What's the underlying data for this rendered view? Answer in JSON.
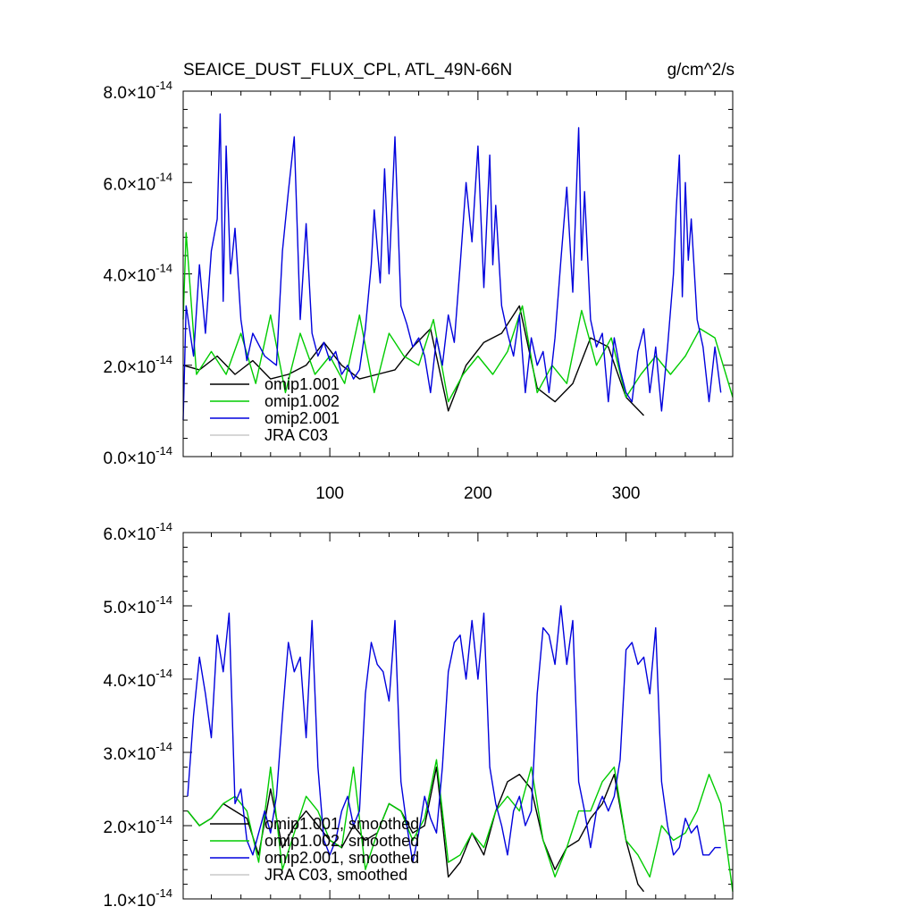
{
  "chart_data": [
    {
      "type": "line",
      "title": "SEAICE_DUST_FLUX_CPL, ATL_49N-66N",
      "units": "g/cm^2/s",
      "xlim": [
        1,
        372
      ],
      "ylim": [
        0,
        8e-14
      ],
      "x_ticks": [
        100,
        200,
        300
      ],
      "y_ticks": [
        "0.0",
        "2.0",
        "4.0",
        "6.0",
        "8.0"
      ],
      "y_tick_values": [
        0,
        2e-14,
        4e-14,
        6e-14,
        8e-14
      ],
      "y_tick_exponent": "-14",
      "legend_position": "bottom-left",
      "series": [
        {
          "name": "omip1.001",
          "color": "#000000",
          "x": [
            1,
            12,
            24,
            36,
            48,
            60,
            72,
            84,
            96,
            108,
            120,
            132,
            144,
            156,
            168,
            180,
            192,
            204,
            216,
            228,
            240,
            252,
            264,
            276,
            288,
            300,
            312
          ],
          "values": [
            2e-14,
            1.9e-14,
            2.2e-14,
            1.8e-14,
            2.1e-14,
            1.7e-14,
            1.8e-14,
            2e-14,
            2.5e-14,
            2e-14,
            1.7e-14,
            1.8e-14,
            1.9e-14,
            2.4e-14,
            2.8e-14,
            1e-14,
            2e-14,
            2.5e-14,
            2.7e-14,
            3.3e-14,
            1.5e-14,
            1.2e-14,
            1.6e-14,
            2.6e-14,
            2.4e-14,
            1.3e-14,
            9e-15
          ]
        },
        {
          "name": "omip1.002",
          "color": "#00cc00",
          "x": [
            1,
            3,
            10,
            20,
            30,
            40,
            50,
            60,
            70,
            80,
            90,
            100,
            110,
            120,
            130,
            140,
            150,
            160,
            170,
            180,
            190,
            200,
            210,
            220,
            230,
            240,
            250,
            260,
            270,
            280,
            290,
            300,
            310,
            320,
            330,
            340,
            350,
            360,
            372
          ],
          "values": [
            3e-14,
            4.9e-14,
            1.8e-14,
            2.3e-14,
            1.8e-14,
            2.7e-14,
            1.6e-14,
            3.1e-14,
            1.4e-14,
            2.7e-14,
            1.8e-14,
            2.2e-14,
            1.6e-14,
            3.1e-14,
            1.4e-14,
            2.7e-14,
            2.2e-14,
            2e-14,
            3e-14,
            1.2e-14,
            1.8e-14,
            2.2e-14,
            1.8e-14,
            2.3e-14,
            3.3e-14,
            1.4e-14,
            2e-14,
            1.6e-14,
            3.2e-14,
            2e-14,
            2.6e-14,
            1.3e-14,
            1.8e-14,
            2.2e-14,
            1.8e-14,
            2.2e-14,
            2.8e-14,
            2.6e-14,
            1.3e-14
          ]
        },
        {
          "name": "omip2.001",
          "color": "#0000dd",
          "x": [
            1,
            3,
            8,
            12,
            16,
            20,
            24,
            26,
            28,
            30,
            33,
            36,
            40,
            44,
            48,
            56,
            64,
            68,
            72,
            76,
            80,
            84,
            88,
            92,
            96,
            100,
            104,
            108,
            112,
            116,
            120,
            124,
            128,
            130,
            134,
            137,
            140,
            144,
            148,
            152,
            156,
            160,
            164,
            168,
            172,
            176,
            180,
            184,
            188,
            192,
            196,
            200,
            204,
            208,
            210,
            212,
            216,
            220,
            224,
            228,
            232,
            236,
            240,
            244,
            248,
            252,
            256,
            260,
            264,
            268,
            270,
            272,
            276,
            280,
            284,
            288,
            292,
            296,
            300,
            304,
            308,
            312,
            316,
            320,
            324,
            328,
            332,
            334,
            336,
            338,
            340,
            342,
            344,
            348,
            352,
            356,
            360,
            364
          ],
          "values": [
            8e-15,
            3.3e-14,
            2.2e-14,
            4.2e-14,
            2.7e-14,
            4.5e-14,
            5.2e-14,
            7.5e-14,
            3.4e-14,
            6.8e-14,
            4e-14,
            5e-14,
            3e-14,
            2.1e-14,
            2.7e-14,
            2.2e-14,
            2e-14,
            4.5e-14,
            5.8e-14,
            7e-14,
            3e-14,
            5.1e-14,
            2.7e-14,
            2.2e-14,
            2.5e-14,
            2.1e-14,
            2.3e-14,
            1.8e-14,
            2e-14,
            1.7e-14,
            1.9e-14,
            2.8e-14,
            4.2e-14,
            5.4e-14,
            3.8e-14,
            6.3e-14,
            4e-14,
            7e-14,
            3.3e-14,
            2.9e-14,
            2.4e-14,
            2.6e-14,
            2.2e-14,
            1.4e-14,
            2.6e-14,
            2e-14,
            3.1e-14,
            2.5e-14,
            4.2e-14,
            6e-14,
            4.7e-14,
            6.8e-14,
            3.7e-14,
            6.6e-14,
            4.2e-14,
            5.5e-14,
            3.3e-14,
            2.7e-14,
            2.2e-14,
            3.1e-14,
            1.4e-14,
            2.6e-14,
            2e-14,
            2.3e-14,
            1.4e-14,
            2.6e-14,
            4.3e-14,
            5.9e-14,
            3.6e-14,
            7.2e-14,
            4.3e-14,
            5.8e-14,
            3e-14,
            2.4e-14,
            2.7e-14,
            1.2e-14,
            2.6e-14,
            1.9e-14,
            1.4e-14,
            1.2e-14,
            2.3e-14,
            2.8e-14,
            1.4e-14,
            2.4e-14,
            1e-14,
            2.4e-14,
            4e-14,
            5.5e-14,
            6.6e-14,
            3.5e-14,
            6e-14,
            4.3e-14,
            5.2e-14,
            3e-14,
            2.4e-14,
            1.2e-14,
            2.4e-14,
            1.4e-14
          ]
        },
        {
          "name": "JRA C03",
          "color": "#c8c8c8",
          "x": [],
          "values": []
        }
      ]
    },
    {
      "type": "line",
      "xlim": [
        1,
        372
      ],
      "ylim": [
        1e-14,
        6e-14
      ],
      "x_ticks": [
        100,
        200,
        300
      ],
      "y_ticks": [
        "1.0",
        "2.0",
        "3.0",
        "4.0",
        "5.0",
        "6.0"
      ],
      "y_tick_values": [
        1e-14,
        2e-14,
        3e-14,
        4e-14,
        5e-14,
        6e-14
      ],
      "y_tick_exponent": "-14",
      "legend_position": "bottom-left",
      "series": [
        {
          "name": "omip1.001, smoothed",
          "color": "#000000",
          "x": [
            4,
            12,
            20,
            28,
            36,
            44,
            52,
            60,
            68,
            76,
            84,
            92,
            100,
            108,
            116,
            124,
            132,
            140,
            148,
            156,
            164,
            172,
            180,
            188,
            196,
            204,
            212,
            220,
            228,
            236,
            244,
            252,
            260,
            268,
            276,
            284,
            292,
            300,
            308,
            312
          ],
          "values": [
            2.2e-14,
            2e-14,
            2.1e-14,
            2.3e-14,
            2.2e-14,
            2.1e-14,
            1.6e-14,
            2.5e-14,
            1.7e-14,
            2e-14,
            2.2e-14,
            2e-14,
            1.8e-14,
            1.7e-14,
            2e-14,
            1.8e-14,
            1.9e-14,
            2.3e-14,
            2.2e-14,
            1.9e-14,
            2e-14,
            2.8e-14,
            1.3e-14,
            1.5e-14,
            1.9e-14,
            1.6e-14,
            2.2e-14,
            2.6e-14,
            2.7e-14,
            2.5e-14,
            1.8e-14,
            1.4e-14,
            1.7e-14,
            1.8e-14,
            2.1e-14,
            2.3e-14,
            2.7e-14,
            1.8e-14,
            1.2e-14,
            1.1e-14
          ]
        },
        {
          "name": "omip1.002, smoothed",
          "color": "#00cc00",
          "x": [
            4,
            12,
            20,
            28,
            36,
            44,
            52,
            60,
            68,
            76,
            84,
            92,
            100,
            108,
            116,
            124,
            132,
            140,
            148,
            156,
            164,
            172,
            180,
            188,
            196,
            204,
            212,
            220,
            228,
            236,
            244,
            252,
            260,
            268,
            276,
            284,
            292,
            300,
            308,
            316,
            324,
            332,
            340,
            348,
            356,
            364,
            372
          ],
          "values": [
            2.2e-14,
            2e-14,
            2.1e-14,
            2.3e-14,
            2.4e-14,
            2.2e-14,
            1.5e-14,
            2.8e-14,
            1.4e-14,
            1.9e-14,
            2.4e-14,
            2.2e-14,
            1.8e-14,
            1.7e-14,
            2.8e-14,
            1.4e-14,
            1.9e-14,
            2.3e-14,
            2.2e-14,
            1.8e-14,
            2.1e-14,
            2.9e-14,
            1.5e-14,
            1.6e-14,
            1.9e-14,
            1.7e-14,
            2.2e-14,
            2.4e-14,
            2.2e-14,
            2.8e-14,
            1.8e-14,
            1.3e-14,
            1.7e-14,
            2.2e-14,
            2.2e-14,
            2.6e-14,
            2.8e-14,
            1.8e-14,
            1.6e-14,
            1.3e-14,
            2e-14,
            1.8e-14,
            1.9e-14,
            2.2e-14,
            2.7e-14,
            2.3e-14,
            1.1e-14
          ]
        },
        {
          "name": "omip2.001, smoothed",
          "color": "#0000dd",
          "x": [
            4,
            8,
            12,
            16,
            20,
            24,
            28,
            32,
            36,
            40,
            44,
            48,
            52,
            56,
            60,
            64,
            68,
            72,
            76,
            80,
            84,
            88,
            92,
            96,
            100,
            104,
            108,
            112,
            116,
            120,
            124,
            128,
            132,
            136,
            140,
            144,
            148,
            152,
            156,
            160,
            164,
            168,
            172,
            176,
            180,
            184,
            188,
            192,
            196,
            200,
            204,
            208,
            212,
            216,
            220,
            224,
            228,
            232,
            236,
            240,
            244,
            248,
            252,
            256,
            260,
            264,
            268,
            272,
            276,
            280,
            284,
            288,
            292,
            296,
            300,
            304,
            308,
            312,
            316,
            320,
            324,
            328,
            332,
            336,
            340,
            344,
            348,
            352,
            356,
            360,
            364
          ],
          "values": [
            2.4e-14,
            3.5e-14,
            4.3e-14,
            3.8e-14,
            3.2e-14,
            4.6e-14,
            4.1e-14,
            4.9e-14,
            2.3e-14,
            2.5e-14,
            1.8e-14,
            1.6e-14,
            1.9e-14,
            2.2e-14,
            1.9e-14,
            2.4e-14,
            3.5e-14,
            4.5e-14,
            4.1e-14,
            4.3e-14,
            3.2e-14,
            4.8e-14,
            2.8e-14,
            1.8e-14,
            1.6e-14,
            1.8e-14,
            2.2e-14,
            2.4e-14,
            2e-14,
            2.2e-14,
            3.8e-14,
            4.5e-14,
            4.2e-14,
            4.1e-14,
            3.7e-14,
            4.8e-14,
            2.6e-14,
            2e-14,
            1.5e-14,
            1.9e-14,
            2.4e-14,
            2.1e-14,
            1.9e-14,
            2.8e-14,
            4.1e-14,
            4.5e-14,
            4.6e-14,
            4e-14,
            4.8e-14,
            4e-14,
            4.9e-14,
            2.8e-14,
            2.3e-14,
            2e-14,
            1.6e-14,
            2.2e-14,
            2.4e-14,
            2e-14,
            2.2e-14,
            3.8e-14,
            4.7e-14,
            4.6e-14,
            4.2e-14,
            5e-14,
            4.2e-14,
            4.8e-14,
            2.6e-14,
            2.2e-14,
            1.7e-14,
            2.2e-14,
            2.4e-14,
            2.2e-14,
            2.4e-14,
            2.9e-14,
            4.4e-14,
            4.5e-14,
            4.2e-14,
            4.3e-14,
            3.8e-14,
            4.7e-14,
            2.6e-14,
            2e-14,
            1.6e-14,
            1.7e-14,
            2.1e-14,
            1.9e-14,
            2e-14,
            1.6e-14,
            1.6e-14,
            1.7e-14,
            1.7e-14
          ]
        },
        {
          "name": "JRA C03, smoothed",
          "color": "#c8c8c8",
          "x": [],
          "values": []
        }
      ]
    }
  ]
}
